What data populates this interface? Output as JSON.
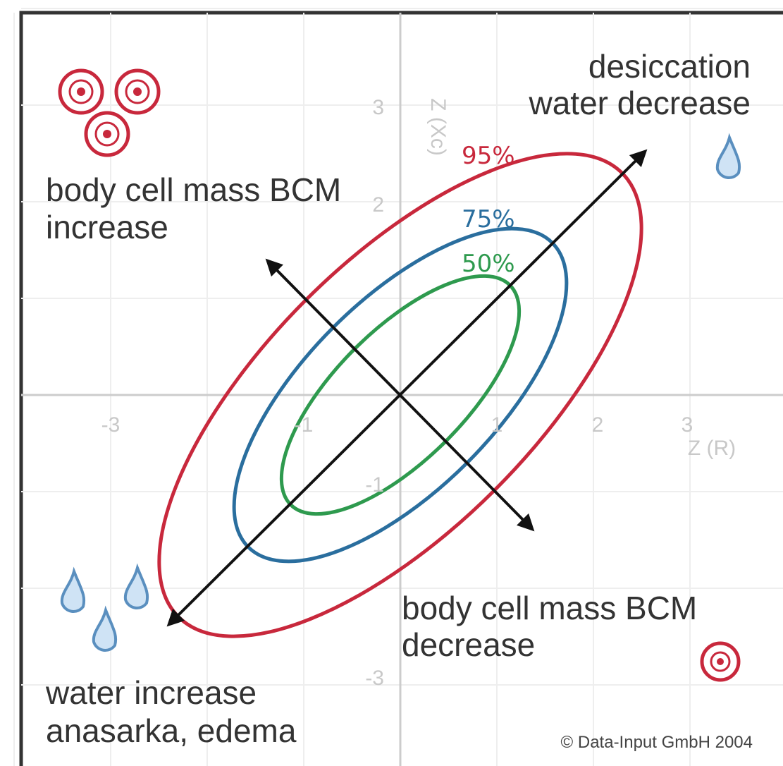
{
  "diagram": {
    "quadrants": {
      "top_left": [
        "body cell mass BCM",
        "increase"
      ],
      "top_right": [
        "desiccation",
        "water decrease"
      ],
      "bottom_left": [
        "water increase",
        "anasarka, edema"
      ],
      "bottom_right": [
        "body cell mass BCM",
        "decrease"
      ]
    },
    "ellipses": [
      "95%",
      "75%",
      "50%"
    ],
    "x_axis_label": "Z (R)",
    "y_axis_label": "Z (Xc)",
    "x_ticks": [
      "-3",
      "-1",
      "1",
      "2",
      "3"
    ],
    "y_ticks": [
      "3",
      "2",
      "-1",
      "-3"
    ],
    "copyright": "© Data-Input GmbH 2004"
  }
}
